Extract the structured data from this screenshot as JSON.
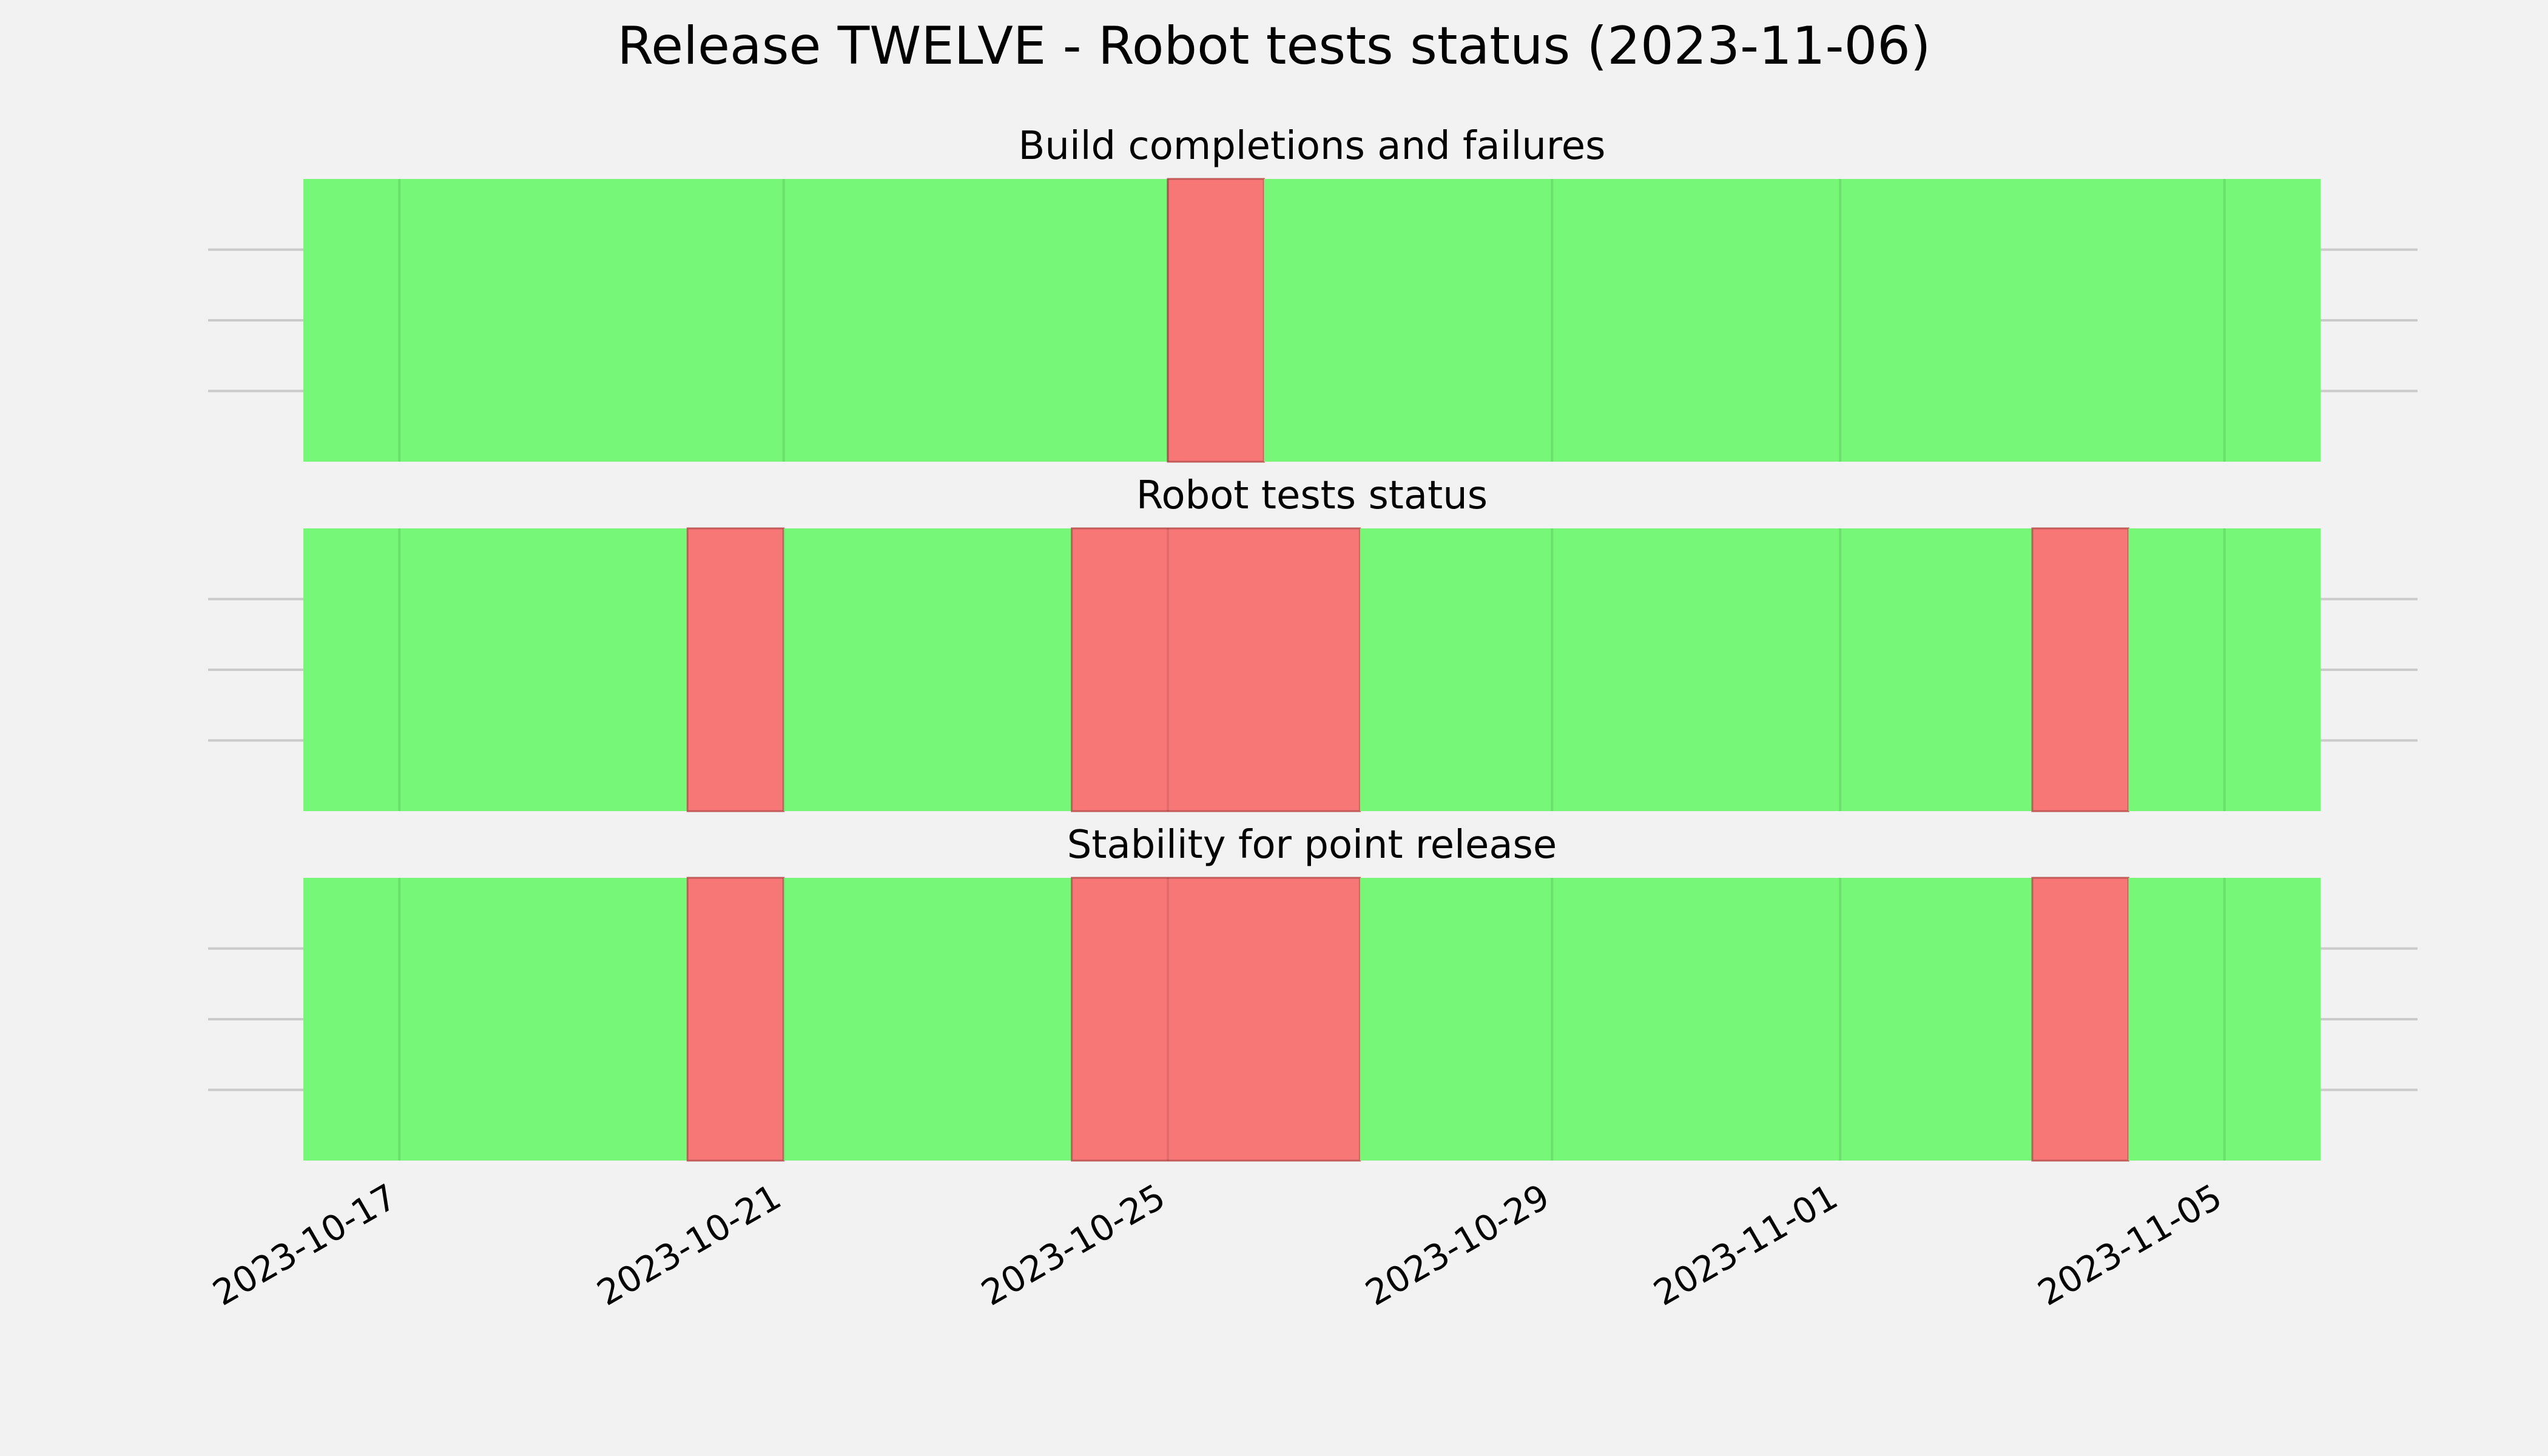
{
  "chart_data": {
    "type": "timeline",
    "title": "Release TWELVE - Robot tests status (2023-11-06)",
    "x_axis": {
      "type": "date",
      "range": [
        "2023-10-16",
        "2023-11-06"
      ],
      "ticks": [
        "2023-10-17",
        "2023-10-21",
        "2023-10-25",
        "2023-10-29",
        "2023-11-01",
        "2023-11-05"
      ]
    },
    "grid": true,
    "status_colors": {
      "pass": "#77f777",
      "fail": "#f77777"
    },
    "panels": [
      {
        "title": "Build completions and failures",
        "segments": [
          {
            "start": "2023-10-16",
            "end": "2023-10-25",
            "status": "pass"
          },
          {
            "start": "2023-10-25",
            "end": "2023-10-26",
            "status": "fail"
          },
          {
            "start": "2023-10-26",
            "end": "2023-11-06",
            "status": "pass"
          }
        ]
      },
      {
        "title": "Robot tests status",
        "segments": [
          {
            "start": "2023-10-16",
            "end": "2023-10-20",
            "status": "pass"
          },
          {
            "start": "2023-10-20",
            "end": "2023-10-21",
            "status": "fail"
          },
          {
            "start": "2023-10-21",
            "end": "2023-10-24",
            "status": "pass"
          },
          {
            "start": "2023-10-24",
            "end": "2023-10-27",
            "status": "fail"
          },
          {
            "start": "2023-10-27",
            "end": "2023-11-03",
            "status": "pass"
          },
          {
            "start": "2023-11-03",
            "end": "2023-11-04",
            "status": "fail"
          },
          {
            "start": "2023-11-04",
            "end": "2023-11-06",
            "status": "pass"
          }
        ]
      },
      {
        "title": "Stability for point release",
        "segments": [
          {
            "start": "2023-10-16",
            "end": "2023-10-20",
            "status": "pass"
          },
          {
            "start": "2023-10-20",
            "end": "2023-10-21",
            "status": "fail"
          },
          {
            "start": "2023-10-21",
            "end": "2023-10-24",
            "status": "pass"
          },
          {
            "start": "2023-10-24",
            "end": "2023-10-27",
            "status": "fail"
          },
          {
            "start": "2023-10-27",
            "end": "2023-11-03",
            "status": "pass"
          },
          {
            "start": "2023-11-03",
            "end": "2023-11-04",
            "status": "fail"
          },
          {
            "start": "2023-11-04",
            "end": "2023-11-06",
            "status": "pass"
          }
        ]
      }
    ]
  }
}
